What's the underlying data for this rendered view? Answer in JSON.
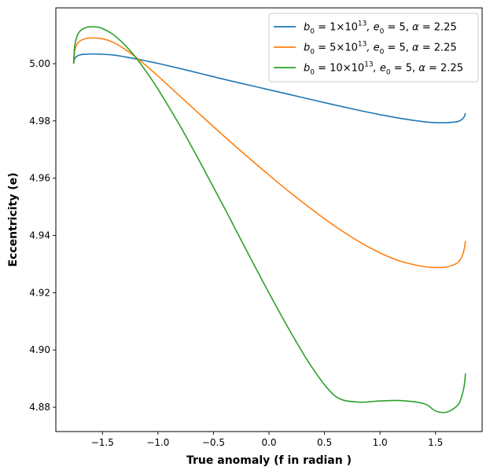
{
  "chart_data": {
    "type": "line",
    "title": "",
    "xlabel": "True anomaly (f in radian )",
    "ylabel": "Eccentricity (e)",
    "xlim": [
      -1.92,
      1.92
    ],
    "ylim": [
      4.8715,
      5.0195
    ],
    "xticks": [
      -1.5,
      -1.0,
      -0.5,
      0.0,
      0.5,
      1.0,
      1.5
    ],
    "xtick_labels": [
      "−1.5",
      "−1.0",
      "−0.5",
      "0.0",
      "0.5",
      "1.0",
      "1.5"
    ],
    "yticks": [
      4.88,
      4.9,
      4.92,
      4.94,
      4.96,
      4.98,
      5.0
    ],
    "ytick_labels": [
      "4.88",
      "4.90",
      "4.92",
      "4.94",
      "4.96",
      "4.98",
      "5.00"
    ],
    "grid": false,
    "legend_position": "top-right",
    "series": [
      {
        "name_parts": [
          "b",
          "0",
          " = 1×10",
          "13",
          ", e",
          "0",
          " = 5, ",
          "α",
          " = 2.25"
        ],
        "color": "#1f77b4",
        "x": [
          -1.76,
          -1.75,
          -1.73,
          -1.7,
          -1.65,
          -1.6,
          -1.5,
          -1.4,
          -1.3,
          -1.2,
          -1.1,
          -1.0,
          -0.8,
          -0.6,
          -0.4,
          -0.2,
          0.0,
          0.2,
          0.4,
          0.6,
          0.8,
          1.0,
          1.2,
          1.4,
          1.5,
          1.6,
          1.7,
          1.74,
          1.76,
          1.77
        ],
        "y": [
          5.0,
          5.0018,
          5.0026,
          5.0031,
          5.0033,
          5.0034,
          5.0033,
          5.003,
          5.0024,
          5.0017,
          5.0009,
          5.0001,
          4.9983,
          4.9964,
          4.9945,
          4.9927,
          4.9909,
          4.9891,
          4.9873,
          4.9855,
          4.9838,
          4.9822,
          4.9808,
          4.9797,
          4.9794,
          4.9794,
          4.9798,
          4.9806,
          4.9816,
          4.9827
        ]
      },
      {
        "name_parts": [
          "b",
          "0",
          " = 5×10",
          "13",
          ", e",
          "0",
          " = 5, ",
          "α",
          " = 2.25"
        ],
        "color": "#ff7f0e",
        "x": [
          -1.76,
          -1.75,
          -1.73,
          -1.7,
          -1.65,
          -1.6,
          -1.5,
          -1.4,
          -1.3,
          -1.2,
          -1.1,
          -1.0,
          -0.8,
          -0.6,
          -0.4,
          -0.2,
          0.0,
          0.2,
          0.4,
          0.6,
          0.8,
          1.0,
          1.2,
          1.4,
          1.5,
          1.6,
          1.7,
          1.74,
          1.76,
          1.77
        ],
        "y": [
          5.0,
          5.0045,
          5.0068,
          5.008,
          5.0088,
          5.009,
          5.0087,
          5.0074,
          5.0051,
          5.0023,
          4.9991,
          4.9957,
          4.9886,
          4.9815,
          4.9745,
          4.9677,
          4.9611,
          4.9547,
          4.9487,
          4.9431,
          4.9381,
          4.9339,
          4.9308,
          4.9291,
          4.9288,
          4.929,
          4.9305,
          4.9328,
          4.9355,
          4.9381
        ]
      },
      {
        "name_parts": [
          "b",
          "0",
          " = 10×10",
          "13",
          ", e",
          "0",
          " = 5, ",
          "α",
          " = 2.25"
        ],
        "color": "#2ca02c",
        "x": [
          -1.76,
          -1.75,
          -1.73,
          -1.7,
          -1.65,
          -1.6,
          -1.55,
          -1.5,
          -1.4,
          -1.3,
          -1.2,
          -1.1,
          -1.0,
          -0.8,
          -0.6,
          -0.4,
          -0.2,
          0.0,
          0.2,
          0.4,
          0.6,
          0.8,
          1.0,
          1.2,
          1.4,
          1.5,
          1.6,
          1.7,
          1.74,
          1.76,
          1.77
        ],
        "y": [
          5.0,
          5.0062,
          5.0095,
          5.0115,
          5.0126,
          5.0129,
          5.0128,
          5.0123,
          5.0101,
          5.0066,
          5.0022,
          4.9969,
          4.9911,
          4.9782,
          4.9641,
          4.9495,
          4.9346,
          4.9199,
          4.9059,
          4.8932,
          4.8838,
          4.8818,
          4.8822,
          4.8823,
          4.8812,
          4.8787,
          4.8783,
          4.8807,
          4.8843,
          4.8879,
          4.8918
        ]
      }
    ]
  }
}
